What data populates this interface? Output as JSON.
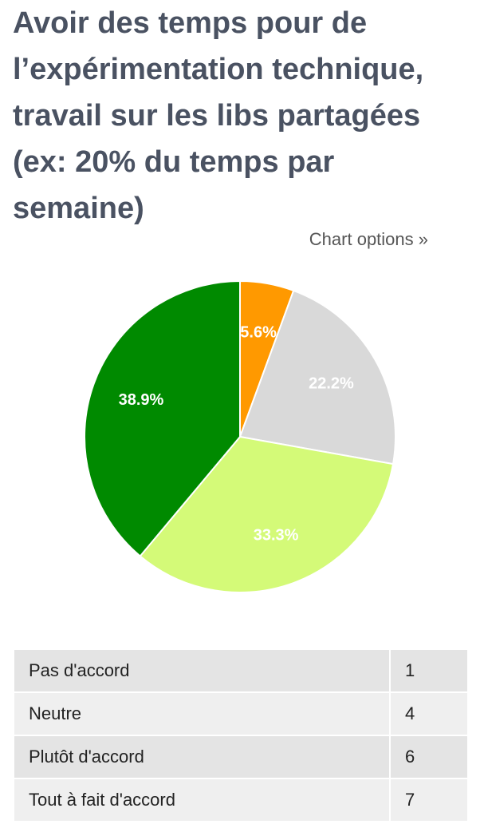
{
  "chart_data": {
    "type": "pie",
    "title": "Avoir des temps pour de l’expérimentation technique, travail sur les libs partagées (ex: 20% du temps par semaine)",
    "categories": [
      "Pas d'accord",
      "Neutre",
      "Plutôt d'accord",
      "Tout à fait d'accord"
    ],
    "values": [
      5.6,
      22.2,
      33.3,
      38.9
    ],
    "value_labels": [
      "5.6%",
      "22.2%",
      "33.3%",
      "38.9%"
    ],
    "colors": [
      "#ff9900",
      "#d9d9d9",
      "#d4fa78",
      "#008a00"
    ]
  },
  "link": "Chart options »",
  "table": {
    "rows": [
      [
        "Pas d'accord",
        "1"
      ],
      [
        "Neutre",
        "4"
      ],
      [
        "Plutôt d'accord",
        "6"
      ],
      [
        "Tout à fait d'accord",
        "7"
      ]
    ]
  }
}
